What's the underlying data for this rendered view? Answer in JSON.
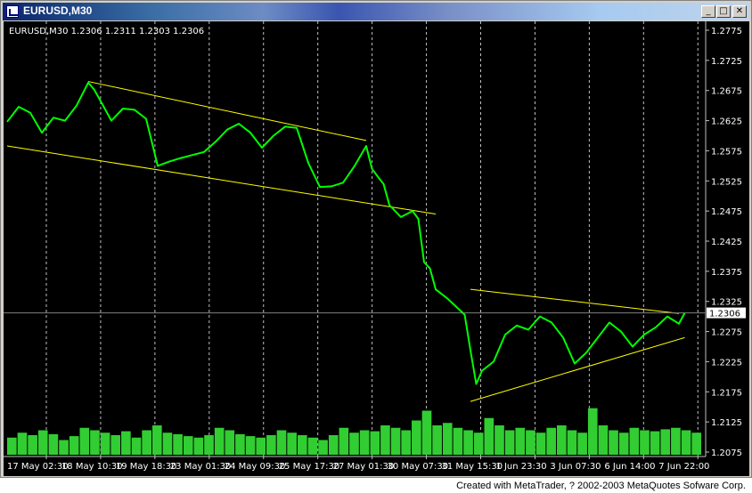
{
  "window": {
    "title": "EURUSD,M30",
    "buttons": {
      "minimize": "_",
      "maximize": "□",
      "close": "✕"
    }
  },
  "footer": "Created with MetaTrader, ? 2002-2003 MetaQuotes Sofware Corp.",
  "colors": {
    "background": "#000000",
    "price_line": "#00ff00",
    "volume": "#32cd32",
    "grid": "#c0c0c0",
    "axis_text": "#ffffff",
    "trendline": "#ffff00",
    "bid_line": "#808080"
  },
  "chart_data": {
    "type": "line",
    "title": "EURUSD,M30  1.2306 1.2311 1.2303 1.2306",
    "symbol": "EURUSD,M30",
    "ohlc": {
      "open": 1.2306,
      "high": 1.2311,
      "low": 1.2303,
      "close": 1.2306
    },
    "current_price": 1.2306,
    "current_price_label": "1.2306",
    "grid": true,
    "ylim": [
      1.2075,
      1.2775
    ],
    "y_ticks": [
      1.2775,
      1.2725,
      1.2675,
      1.2625,
      1.2575,
      1.2525,
      1.2475,
      1.2425,
      1.2375,
      1.2325,
      1.2275,
      1.2225,
      1.2175,
      1.2125,
      1.2075
    ],
    "y_tick_labels": [
      "1.2775",
      "1.2725",
      "1.2675",
      "1.2625",
      "1.2575",
      "1.2525",
      "1.2475",
      "1.2425",
      "1.2375",
      "1.2325",
      "1.2275",
      "1.2225",
      "1.2175",
      "1.2125",
      "1.2075"
    ],
    "x_tick_labels": [
      "17 May 02:30",
      "18 May 10:30",
      "19 May 18:30",
      "23 May 01:30",
      "24 May 09:30",
      "25 May 17:30",
      "27 May 01:30",
      "30 May 07:30",
      "31 May 15:30",
      "1 Jun 23:30",
      "3 Jun 07:30",
      "6 Jun 14:00",
      "7 Jun 22:00"
    ],
    "x_range": [
      0,
      120
    ],
    "series": [
      {
        "x": [
          0,
          2,
          4,
          6,
          8,
          10,
          12,
          14,
          15,
          16,
          18,
          20,
          22,
          24,
          26,
          28,
          30,
          32,
          34,
          36,
          38,
          40,
          42,
          44,
          46,
          48,
          50,
          52,
          54,
          56,
          58,
          60,
          62,
          63,
          64,
          65,
          66,
          68,
          70,
          71,
          72,
          73,
          74,
          76,
          78,
          79,
          80,
          81,
          82,
          84,
          86,
          88,
          90,
          92,
          94,
          96,
          98,
          100,
          102,
          104,
          106,
          108,
          110,
          112,
          114,
          116,
          117
        ],
        "close": [
          1.2623,
          1.2648,
          1.2638,
          1.2605,
          1.263,
          1.2625,
          1.265,
          1.2688,
          1.2677,
          1.266,
          1.2625,
          1.2645,
          1.2643,
          1.2628,
          1.255,
          1.2557,
          1.2563,
          1.2568,
          1.2573,
          1.259,
          1.261,
          1.262,
          1.2605,
          1.258,
          1.26,
          1.2615,
          1.2613,
          1.2555,
          1.2515,
          1.2516,
          1.2522,
          1.255,
          1.2583,
          1.2545,
          1.2532,
          1.252,
          1.2485,
          1.2465,
          1.2475,
          1.2462,
          1.239,
          1.238,
          1.2345,
          1.233,
          1.2312,
          1.2303,
          1.2244,
          1.2188,
          1.221,
          1.2225,
          1.227,
          1.2285,
          1.2278,
          1.23,
          1.229,
          1.2265,
          1.2222,
          1.224,
          1.2265,
          1.229,
          1.2275,
          1.225,
          1.227,
          1.2282,
          1.23,
          1.2288,
          1.2306
        ]
      }
    ],
    "volume_relative": [
      0.35,
      0.45,
      0.4,
      0.5,
      0.42,
      0.3,
      0.38,
      0.55,
      0.5,
      0.45,
      0.4,
      0.48,
      0.35,
      0.5,
      0.6,
      0.45,
      0.42,
      0.38,
      0.35,
      0.4,
      0.55,
      0.5,
      0.42,
      0.38,
      0.35,
      0.4,
      0.5,
      0.45,
      0.4,
      0.35,
      0.3,
      0.4,
      0.55,
      0.45,
      0.5,
      0.48,
      0.6,
      0.55,
      0.5,
      0.7,
      0.9,
      0.6,
      0.65,
      0.55,
      0.5,
      0.45,
      0.75,
      0.6,
      0.5,
      0.55,
      0.5,
      0.45,
      0.55,
      0.6,
      0.5,
      0.45,
      0.95,
      0.6,
      0.5,
      0.45,
      0.55,
      0.5,
      0.48,
      0.52,
      0.55,
      0.5,
      0.45
    ],
    "trendlines": [
      {
        "points": [
          [
            14,
            1.269
          ],
          [
            62,
            1.2592
          ]
        ]
      },
      {
        "points": [
          [
            0,
            1.2583
          ],
          [
            74,
            1.247
          ]
        ]
      },
      {
        "points": [
          [
            80,
            1.2345
          ],
          [
            116,
            1.2305
          ]
        ]
      },
      {
        "points": [
          [
            80,
            1.2159
          ],
          [
            117,
            1.2265
          ]
        ]
      }
    ]
  }
}
